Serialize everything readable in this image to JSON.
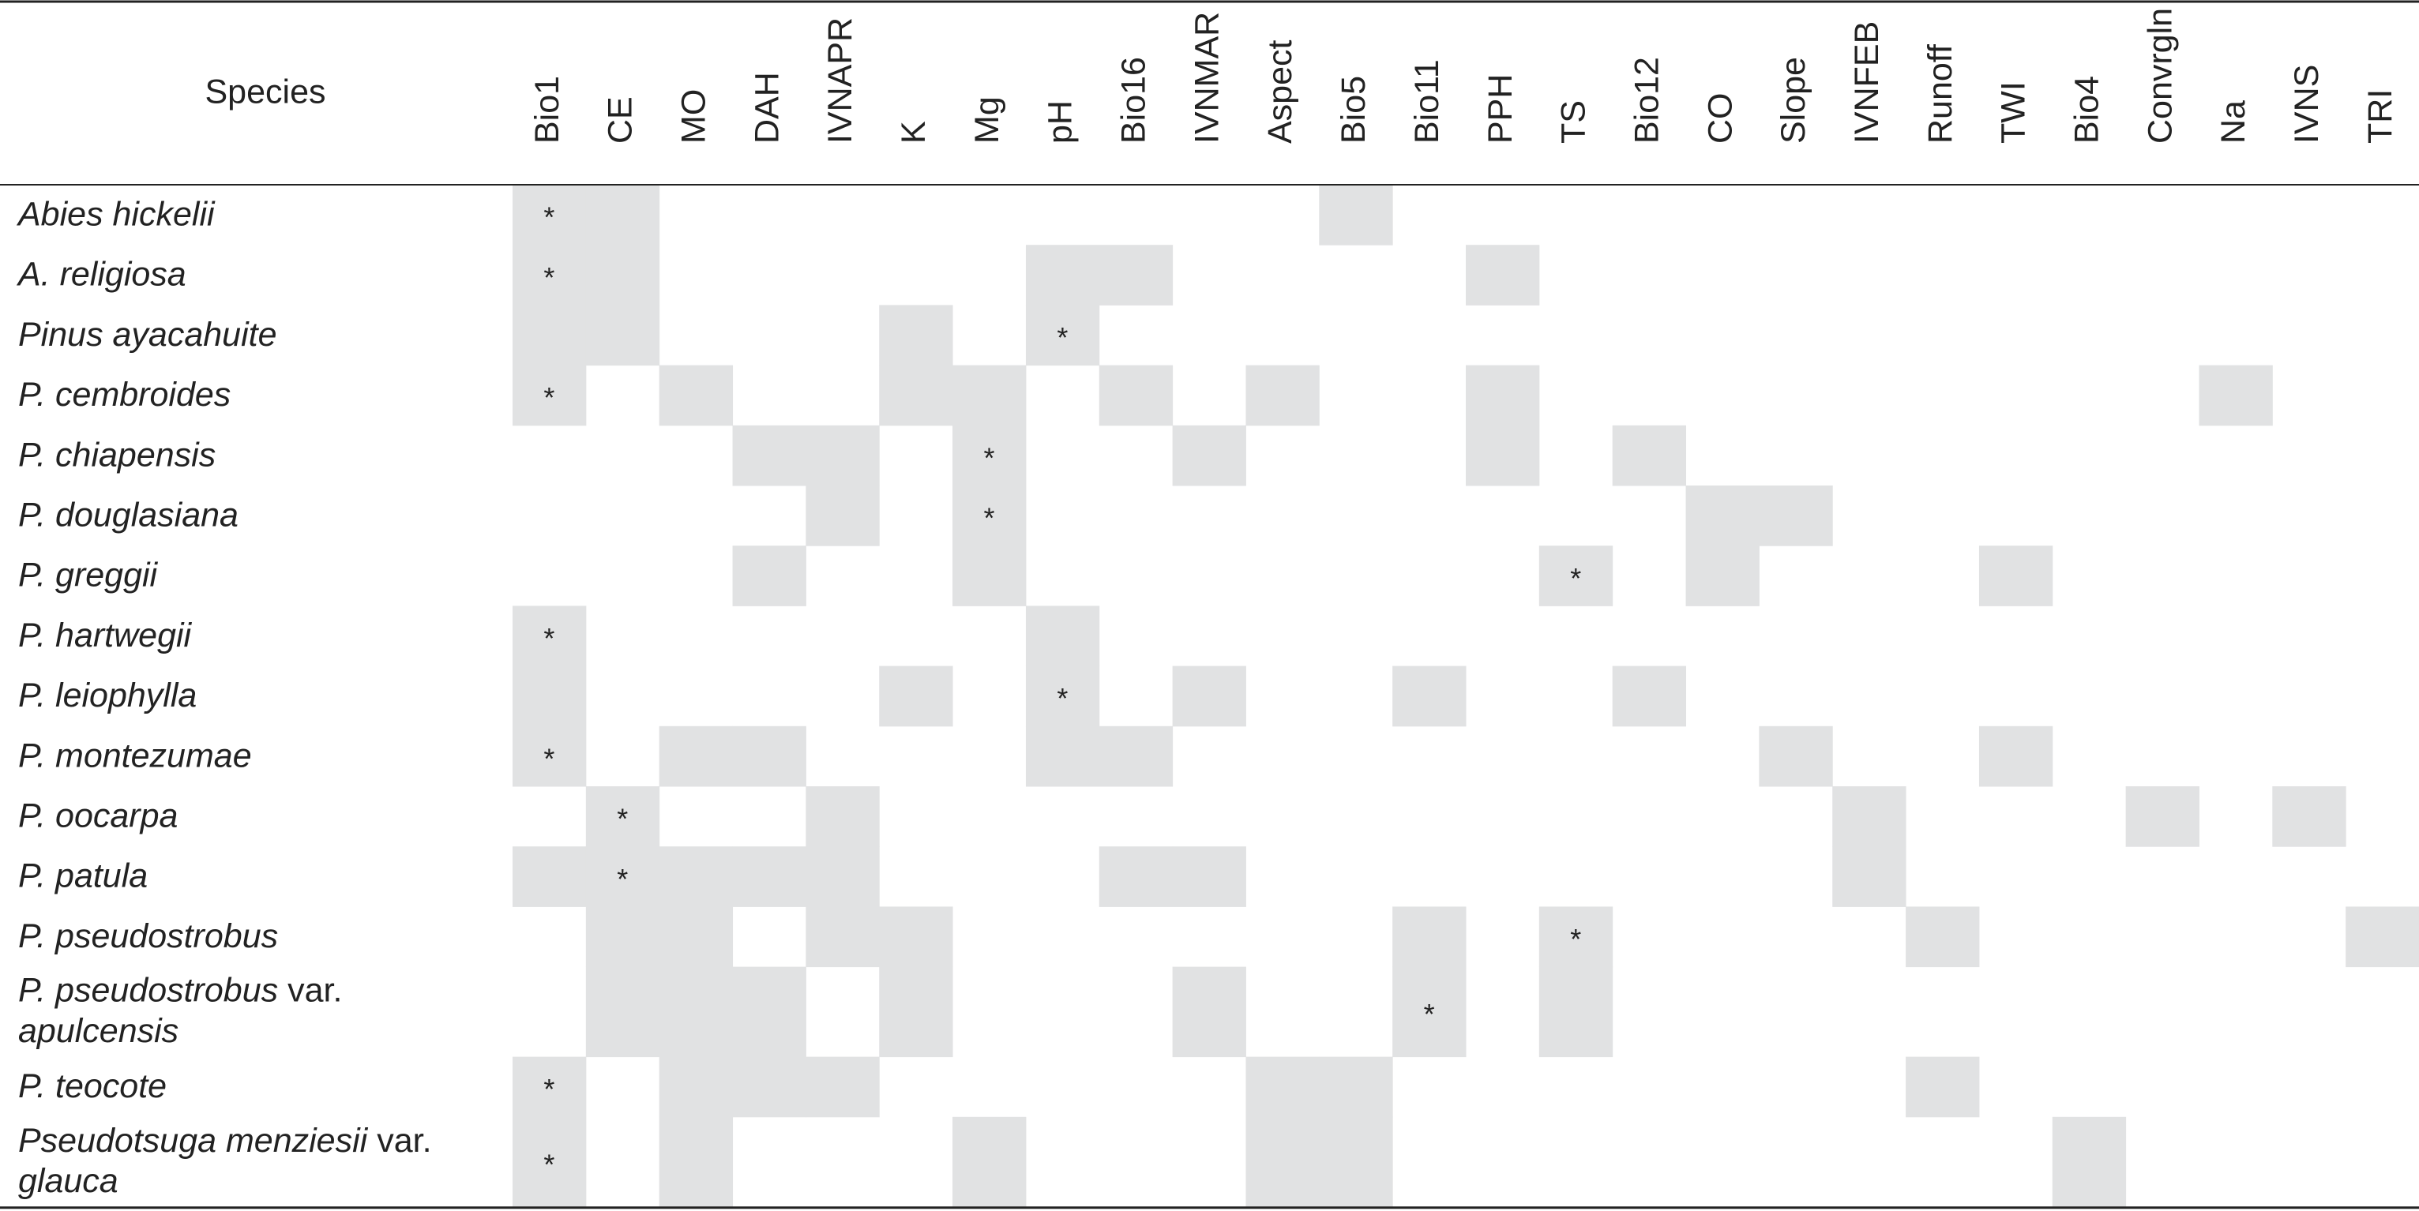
{
  "table": {
    "header": "Species",
    "columns": [
      "Bio1",
      "CE",
      "MO",
      "DAH",
      "IVNAPR",
      "K",
      "Mg",
      "pH",
      "Bio16",
      "IVNMAR",
      "Aspect",
      "Bio5",
      "Bio11",
      "PPH",
      "TS",
      "Bio12",
      "CO",
      "Slope",
      "IVNFEB",
      "Runoff",
      "TWI",
      "Bio4",
      "Convrgln",
      "Na",
      "IVNS",
      "TRI"
    ],
    "mark": "*",
    "var_label": "var.",
    "rows": [
      {
        "species": "Abies hickelii",
        "shaded": [
          "Bio1",
          "CE",
          "Bio5"
        ],
        "starred": "Bio1"
      },
      {
        "species": "A. religiosa",
        "shaded": [
          "Bio1",
          "CE",
          "pH",
          "Bio16",
          "PPH"
        ],
        "starred": "Bio1"
      },
      {
        "species": "Pinus ayacahuite",
        "shaded": [
          "Bio1",
          "CE",
          "K",
          "pH"
        ],
        "starred": "pH"
      },
      {
        "species": "P. cembroides",
        "shaded": [
          "Bio1",
          "MO",
          "K",
          "Mg",
          "Bio16",
          "Aspect",
          "PPH",
          "Na"
        ],
        "starred": "Bio1"
      },
      {
        "species": "P. chiapensis",
        "shaded": [
          "DAH",
          "IVNAPR",
          "Mg",
          "IVNMAR",
          "PPH",
          "Bio12"
        ],
        "starred": "Mg"
      },
      {
        "species": "P. douglasiana",
        "shaded": [
          "IVNAPR",
          "Mg",
          "CO",
          "Slope"
        ],
        "starred": "Mg"
      },
      {
        "species": "P. greggii",
        "shaded": [
          "DAH",
          "Mg",
          "TS",
          "CO",
          "TWI"
        ],
        "starred": "TS"
      },
      {
        "species": "P. hartwegii",
        "shaded": [
          "Bio1",
          "pH"
        ],
        "starred": "Bio1"
      },
      {
        "species": "P. leiophylla",
        "shaded": [
          "Bio1",
          "K",
          "pH",
          "IVNMAR",
          "Bio11",
          "Bio12"
        ],
        "starred": "pH"
      },
      {
        "species": "P. montezumae",
        "shaded": [
          "Bio1",
          "MO",
          "DAH",
          "pH",
          "Bio16",
          "Slope",
          "TWI"
        ],
        "starred": "Bio1"
      },
      {
        "species": "P. oocarpa",
        "shaded": [
          "CE",
          "IVNAPR",
          "IVNFEB",
          "Convrgln",
          "IVNS"
        ],
        "starred": "CE"
      },
      {
        "species": "P. patula",
        "shaded": [
          "Bio1",
          "CE",
          "MO",
          "DAH",
          "IVNAPR",
          "Bio16",
          "IVNMAR",
          "IVNFEB"
        ],
        "starred": "CE"
      },
      {
        "species": "P. pseudostrobus",
        "shaded": [
          "CE",
          "MO",
          "IVNAPR",
          "K",
          "Bio11",
          "TS",
          "Runoff",
          "TRI"
        ],
        "starred": "TS"
      },
      {
        "species": "P. pseudostrobus",
        "variety": "apulcensis",
        "shaded": [
          "CE",
          "MO",
          "DAH",
          "K",
          "IVNMAR",
          "Bio11",
          "TS"
        ],
        "starred": "Bio11"
      },
      {
        "species": "P. teocote",
        "shaded": [
          "Bio1",
          "MO",
          "DAH",
          "IVNAPR",
          "Aspect",
          "Bio5",
          "Runoff"
        ],
        "starred": "Bio1"
      },
      {
        "species": "Pseudotsuga menziesii",
        "variety": "glauca",
        "shaded": [
          "Bio1",
          "MO",
          "Mg",
          "Aspect",
          "Bio5",
          "Bio4"
        ],
        "starred": "Bio1"
      }
    ]
  }
}
